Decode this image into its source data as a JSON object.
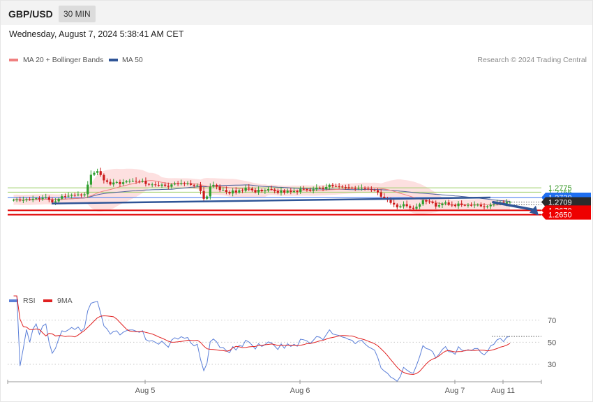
{
  "header": {
    "symbol": "GBP/USD",
    "timeframe": "30 MIN"
  },
  "timestamp": "Wednesday, August 7, 2024 5:38:41 AM CET",
  "legend_main": [
    {
      "label": "MA 20 + Bollinger Bands",
      "color": "#f08080"
    },
    {
      "label": "MA 50",
      "color": "#2f5597"
    }
  ],
  "legend_rsi": [
    {
      "label": "RSI",
      "color": "#5b7fd8"
    },
    {
      "label": "9MA",
      "color": "#e02020"
    }
  ],
  "credit": "Research © 2024 Trading Central",
  "colors": {
    "up": "#2e9e2e",
    "down": "#cc1a1a",
    "band": "#fde0e0",
    "ma20": "#f08080",
    "ma50": "#4a5f9a",
    "trend": "#2f5597",
    "support": "#e00000",
    "pivot": "#2a6ef0"
  },
  "chart_data": [
    {
      "type": "candlestick",
      "title": "GBP/USD 30 MIN",
      "x_labels": [
        "Aug 5",
        "Aug 6",
        "Aug 7",
        "Aug 11"
      ],
      "ylim": [
        1.2637,
        1.2835
      ],
      "last_price": 1.2709,
      "levels": [
        {
          "value": 1.2775,
          "label": "1.2775",
          "style": "resistance"
        },
        {
          "value": 1.2755,
          "label": "1.2755",
          "style": "resistance"
        },
        {
          "value": 1.273,
          "label": "1.2730",
          "style": "pivot"
        },
        {
          "value": 1.2709,
          "label": "1.2709",
          "style": "last"
        },
        {
          "value": 1.267,
          "label": "1.2670",
          "style": "support"
        },
        {
          "value": 1.265,
          "label": "1.2650",
          "style": "support"
        }
      ],
      "trendline": {
        "from": 1.2702,
        "to": 1.273
      },
      "forecast_arrow": {
        "from": 1.2708,
        "to": 1.265
      },
      "candle_closes": [
        1.2719,
        1.2721,
        1.2716,
        1.2718,
        1.2722,
        1.2719,
        1.2724,
        1.2727,
        1.2723,
        1.2729,
        1.2731,
        1.2719,
        1.2707,
        1.2712,
        1.2724,
        1.2736,
        1.2735,
        1.2738,
        1.2742,
        1.274,
        1.2744,
        1.274,
        1.2745,
        1.279,
        1.2836,
        1.2845,
        1.2853,
        1.2835,
        1.281,
        1.2803,
        1.2791,
        1.28,
        1.2802,
        1.2793,
        1.2801,
        1.2806,
        1.2808,
        1.2808,
        1.2806,
        1.2804,
        1.2808,
        1.2793,
        1.279,
        1.2791,
        1.2788,
        1.2785,
        1.279,
        1.2785,
        1.278,
        1.2791,
        1.2795,
        1.2793,
        1.2797,
        1.2795,
        1.2796,
        1.2789,
        1.2785,
        1.2787,
        1.276,
        1.2724,
        1.2735,
        1.2781,
        1.2789,
        1.2781,
        1.2765,
        1.2765,
        1.2756,
        1.2749,
        1.2763,
        1.2753,
        1.2764,
        1.2761,
        1.2776,
        1.2772,
        1.2764,
        1.2754,
        1.2766,
        1.2759,
        1.2763,
        1.2769,
        1.2767,
        1.276,
        1.2752,
        1.2763,
        1.2753,
        1.2762,
        1.2756,
        1.276,
        1.2756,
        1.277,
        1.2769,
        1.2767,
        1.2762,
        1.2768,
        1.2775,
        1.2774,
        1.277,
        1.2779,
        1.2789,
        1.2783,
        1.2782,
        1.2781,
        1.2779,
        1.2778,
        1.2776,
        1.2775,
        1.2771,
        1.2774,
        1.2775,
        1.2771,
        1.2768,
        1.2766,
        1.2764,
        1.2754,
        1.2734,
        1.2726,
        1.2719,
        1.2705,
        1.2697,
        1.2684,
        1.2689,
        1.2699,
        1.269,
        1.2682,
        1.2678,
        1.2687,
        1.2699,
        1.2717,
        1.2711,
        1.2709,
        1.2704,
        1.2688,
        1.2694,
        1.2702,
        1.2707,
        1.2696,
        1.2695,
        1.269,
        1.2702,
        1.2695,
        1.2693,
        1.2695,
        1.2693,
        1.2696,
        1.2696,
        1.2689,
        1.2685,
        1.2689,
        1.2696,
        1.2698,
        1.2704,
        1.2706,
        1.2702,
        1.2708,
        1.2709
      ]
    },
    {
      "type": "line",
      "title": "RSI",
      "ylim": [
        0,
        100
      ],
      "yticks": [
        30,
        50,
        70
      ],
      "series": [
        {
          "name": "RSI"
        },
        {
          "name": "9MA"
        }
      ]
    }
  ]
}
